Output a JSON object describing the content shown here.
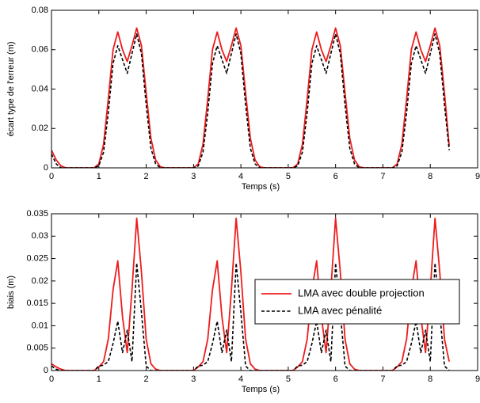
{
  "chart_data": [
    {
      "type": "line",
      "xlabel": "Temps (s)",
      "ylabel": "écart type de l'erreur (m)",
      "xlim": [
        0,
        9
      ],
      "ylim": [
        0,
        0.08
      ],
      "xticks": [
        0,
        1,
        2,
        3,
        4,
        5,
        6,
        7,
        8,
        9
      ],
      "yticks": [
        0,
        0.02,
        0.04,
        0.06,
        0.08
      ],
      "x": [
        0,
        0.1,
        0.2,
        0.3,
        0.4,
        0.5,
        0.6,
        0.7,
        0.8,
        0.9,
        1,
        1.1,
        1.2,
        1.3,
        1.4,
        1.5,
        1.6,
        1.7,
        1.8,
        1.9,
        2,
        2.1,
        2.2,
        2.3,
        2.4,
        2.5,
        2.6,
        2.7,
        2.8,
        2.9,
        3,
        3.1,
        3.2,
        3.3,
        3.4,
        3.5,
        3.6,
        3.7,
        3.8,
        3.9,
        4,
        4.1,
        4.2,
        4.3,
        4.4,
        4.5,
        4.6,
        4.7,
        4.8,
        4.9,
        5,
        5.1,
        5.2,
        5.3,
        5.4,
        5.5,
        5.6,
        5.7,
        5.8,
        5.9,
        6,
        6.1,
        6.2,
        6.3,
        6.4,
        6.5,
        6.6,
        6.7,
        6.8,
        6.9,
        7,
        7.1,
        7.2,
        7.3,
        7.4,
        7.5,
        7.6,
        7.7,
        7.8,
        7.9,
        8,
        8.1,
        8.2,
        8.3,
        8.4
      ],
      "series": [
        {
          "color": "#ee1c1c",
          "style": "solid",
          "values": [
            0.009,
            0.004,
            0.001,
            0,
            0,
            0,
            0,
            0,
            0,
            0,
            0.002,
            0.012,
            0.035,
            0.06,
            0.069,
            0.06,
            0.054,
            0.062,
            0.071,
            0.062,
            0.038,
            0.015,
            0.004,
            0.0005,
            0,
            0,
            0,
            0,
            0,
            0,
            0,
            0.002,
            0.012,
            0.035,
            0.06,
            0.069,
            0.06,
            0.054,
            0.062,
            0.071,
            0.062,
            0.038,
            0.015,
            0.004,
            0.0005,
            0,
            0,
            0,
            0,
            0,
            0,
            0,
            0.002,
            0.012,
            0.035,
            0.06,
            0.069,
            0.06,
            0.054,
            0.062,
            0.071,
            0.062,
            0.038,
            0.015,
            0.004,
            0.0005,
            0,
            0,
            0,
            0,
            0,
            0,
            0,
            0.002,
            0.012,
            0.035,
            0.06,
            0.069,
            0.06,
            0.054,
            0.062,
            0.071,
            0.062,
            0.038,
            0.011
          ]
        },
        {
          "color": "#000000",
          "style": "dashed",
          "values": [
            0.007,
            0.002,
            0,
            0,
            0,
            0,
            0,
            0,
            0,
            0,
            0.001,
            0.008,
            0.028,
            0.053,
            0.062,
            0.055,
            0.048,
            0.058,
            0.068,
            0.058,
            0.032,
            0.01,
            0.002,
            0,
            0,
            0,
            0,
            0,
            0,
            0,
            0,
            0.001,
            0.008,
            0.028,
            0.053,
            0.062,
            0.055,
            0.048,
            0.058,
            0.068,
            0.058,
            0.032,
            0.01,
            0.002,
            0,
            0,
            0,
            0,
            0,
            0,
            0,
            0,
            0.001,
            0.008,
            0.028,
            0.053,
            0.062,
            0.055,
            0.048,
            0.058,
            0.068,
            0.058,
            0.032,
            0.01,
            0.002,
            0,
            0,
            0,
            0,
            0,
            0,
            0,
            0,
            0.001,
            0.008,
            0.028,
            0.053,
            0.062,
            0.055,
            0.048,
            0.058,
            0.068,
            0.058,
            0.032,
            0.009
          ]
        }
      ]
    },
    {
      "type": "line",
      "xlabel": "Temps (s)",
      "ylabel": "biais (m)",
      "legend": "center right",
      "xlim": [
        0,
        9
      ],
      "ylim": [
        0,
        0.035
      ],
      "xticks": [
        0,
        1,
        2,
        3,
        4,
        5,
        6,
        7,
        8,
        9
      ],
      "yticks": [
        0,
        0.005,
        0.01,
        0.015,
        0.02,
        0.025,
        0.03,
        0.035
      ],
      "x": [
        0,
        0.1,
        0.2,
        0.3,
        0.4,
        0.5,
        0.6,
        0.7,
        0.8,
        0.9,
        1,
        1.1,
        1.2,
        1.3,
        1.4,
        1.5,
        1.6,
        1.7,
        1.8,
        1.9,
        2,
        2.1,
        2.2,
        2.3,
        2.4,
        2.5,
        2.6,
        2.7,
        2.8,
        2.9,
        3,
        3.1,
        3.2,
        3.3,
        3.4,
        3.5,
        3.6,
        3.7,
        3.8,
        3.9,
        4,
        4.1,
        4.2,
        4.3,
        4.4,
        4.5,
        4.6,
        4.7,
        4.8,
        4.9,
        5,
        5.1,
        5.2,
        5.3,
        5.4,
        5.5,
        5.6,
        5.7,
        5.8,
        5.9,
        6,
        6.1,
        6.2,
        6.3,
        6.4,
        6.5,
        6.6,
        6.7,
        6.8,
        6.9,
        7,
        7.1,
        7.2,
        7.3,
        7.4,
        7.5,
        7.6,
        7.7,
        7.8,
        7.9,
        8,
        8.1,
        8.2,
        8.3,
        8.4
      ],
      "series": [
        {
          "name": "LMA avec double projection",
          "color": "#ee1c1c",
          "style": "solid",
          "values": [
            0.0015,
            0.0008,
            0.0003,
            0,
            0,
            0,
            0,
            0,
            0,
            0,
            0.0008,
            0.002,
            0.007,
            0.018,
            0.0245,
            0.012,
            0.004,
            0.018,
            0.034,
            0.022,
            0.007,
            0.0015,
            0.0003,
            0,
            0,
            0,
            0,
            0,
            0,
            0,
            0,
            0.0008,
            0.002,
            0.007,
            0.018,
            0.0245,
            0.012,
            0.004,
            0.018,
            0.034,
            0.022,
            0.007,
            0.0015,
            0.0003,
            0,
            0,
            0,
            0,
            0,
            0,
            0,
            0,
            0.0008,
            0.002,
            0.007,
            0.018,
            0.0245,
            0.012,
            0.004,
            0.018,
            0.034,
            0.022,
            0.007,
            0.0015,
            0.0003,
            0,
            0,
            0,
            0,
            0,
            0,
            0,
            0,
            0.0008,
            0.002,
            0.007,
            0.018,
            0.0245,
            0.012,
            0.004,
            0.018,
            0.034,
            0.022,
            0.007,
            0.002
          ]
        },
        {
          "name": "LMA avec pénalité",
          "color": "#000000",
          "style": "dashed",
          "values": [
            0.001,
            0.0003,
            0,
            0,
            0,
            0,
            0,
            0,
            0,
            0,
            0.001,
            0.0012,
            0.002,
            0.006,
            0.011,
            0.004,
            0.009,
            0.002,
            0.024,
            0.013,
            0.001,
            0,
            0,
            0,
            0,
            0,
            0,
            0,
            0,
            0,
            0,
            0.001,
            0.0012,
            0.002,
            0.006,
            0.011,
            0.004,
            0.009,
            0.002,
            0.024,
            0.013,
            0.001,
            0,
            0,
            0,
            0,
            0,
            0,
            0,
            0,
            0,
            0,
            0.001,
            0.0012,
            0.002,
            0.006,
            0.011,
            0.004,
            0.009,
            0.002,
            0.024,
            0.013,
            0.001,
            0,
            0,
            0,
            0,
            0,
            0,
            0,
            0,
            0,
            0,
            0.001,
            0.0012,
            0.002,
            0.006,
            0.011,
            0.004,
            0.009,
            0.002,
            0.024,
            0.013,
            0.001,
            0
          ]
        }
      ]
    }
  ]
}
